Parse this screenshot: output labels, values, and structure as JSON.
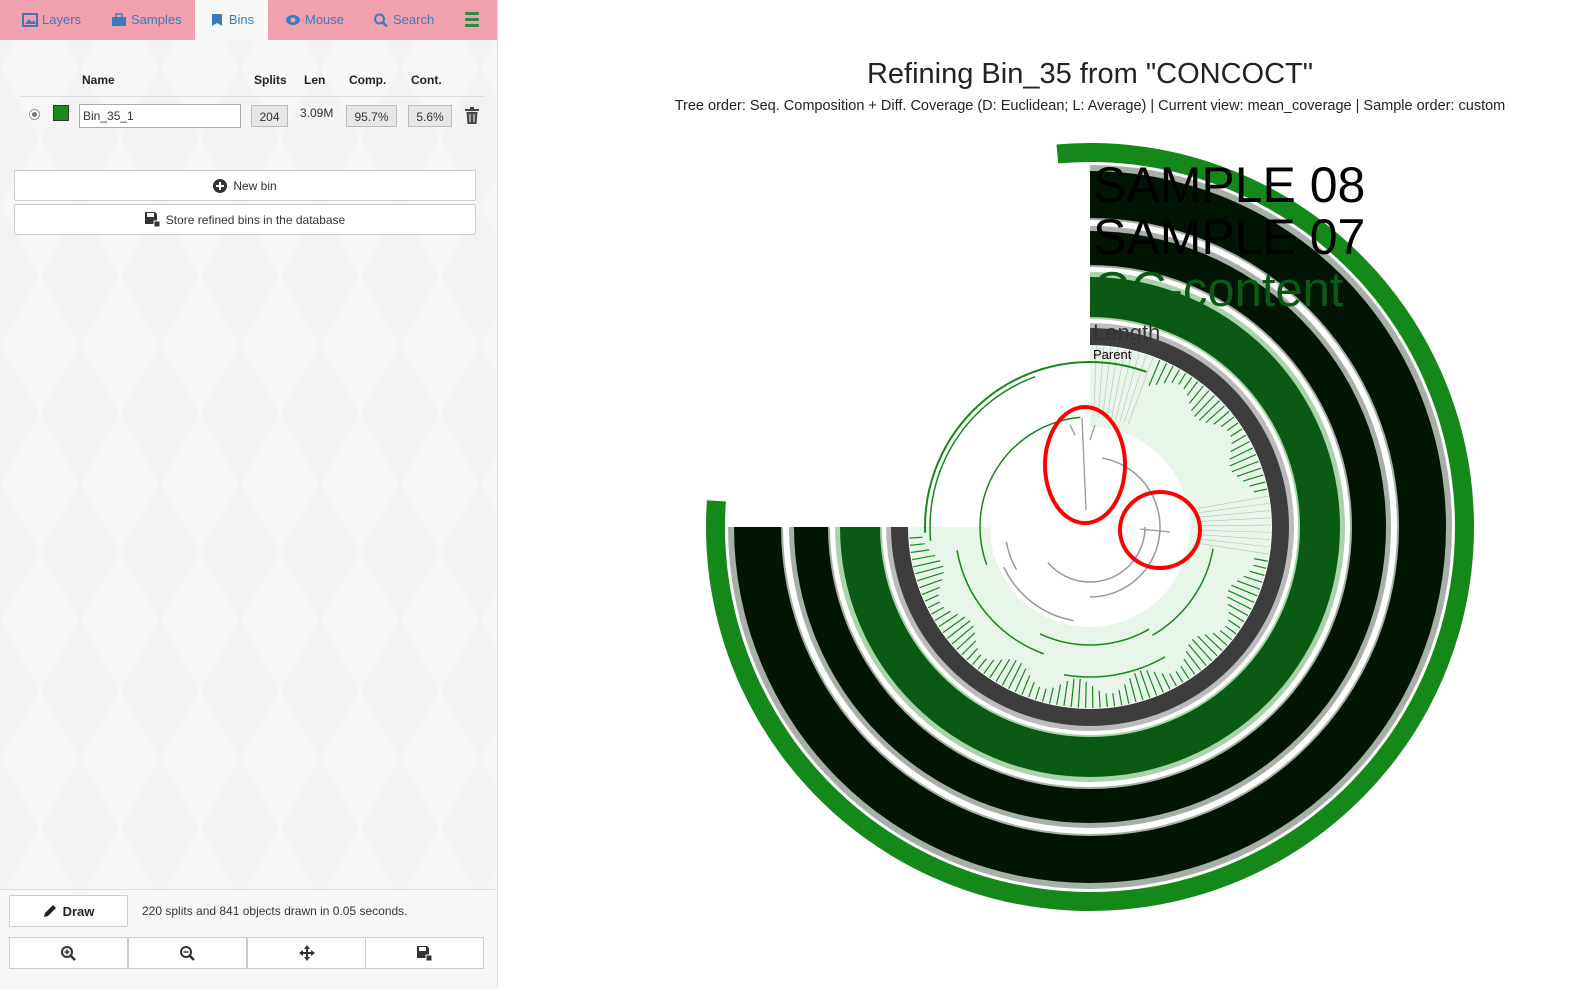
{
  "tabs": [
    {
      "label": "Layers",
      "icon": "image-icon"
    },
    {
      "label": "Samples",
      "icon": "briefcase-icon"
    },
    {
      "label": "Bins",
      "icon": "bookmark-icon",
      "active": true
    },
    {
      "label": "Mouse",
      "icon": "eye-icon"
    },
    {
      "label": "Search",
      "icon": "search-icon"
    }
  ],
  "menu_icon": "hamburger-icon",
  "bins_table": {
    "headers": {
      "name": "Name",
      "splits": "Splits",
      "len": "Len",
      "comp": "Comp.",
      "cont": "Cont."
    },
    "rows": [
      {
        "selected": true,
        "color": "#1c8a1c",
        "name": "Bin_35_1",
        "splits": "204",
        "len": "3.09M",
        "comp": "95.7%",
        "cont": "5.6%"
      }
    ]
  },
  "buttons": {
    "new_bin": "New bin",
    "store": "Store refined bins in the database",
    "draw": "Draw"
  },
  "status": "220 splits and 841 objects drawn in 0.05 seconds.",
  "toolbar_icons": [
    "zoom-in-icon",
    "zoom-out-icon",
    "center-icon",
    "save-icon"
  ],
  "canvas": {
    "title": "Refining Bin_35 from \"CONCOCT\"",
    "subtitle": "Tree order: Seq. Composition + Diff. Coverage (D: Euclidean; L: Average) | Current view: mean_coverage | Sample order: custom",
    "layers": [
      {
        "label": "SAMPLE 08",
        "color": "#000000"
      },
      {
        "label": "SAMPLE 07",
        "color": "#000000"
      },
      {
        "label": "GC-content",
        "color": "#0a5a14"
      },
      {
        "label": "Length",
        "color": "#333333"
      },
      {
        "label": "Parent",
        "color": "#000000"
      }
    ],
    "bin_color": "#14891a",
    "highlight_color": "#ff0000"
  }
}
